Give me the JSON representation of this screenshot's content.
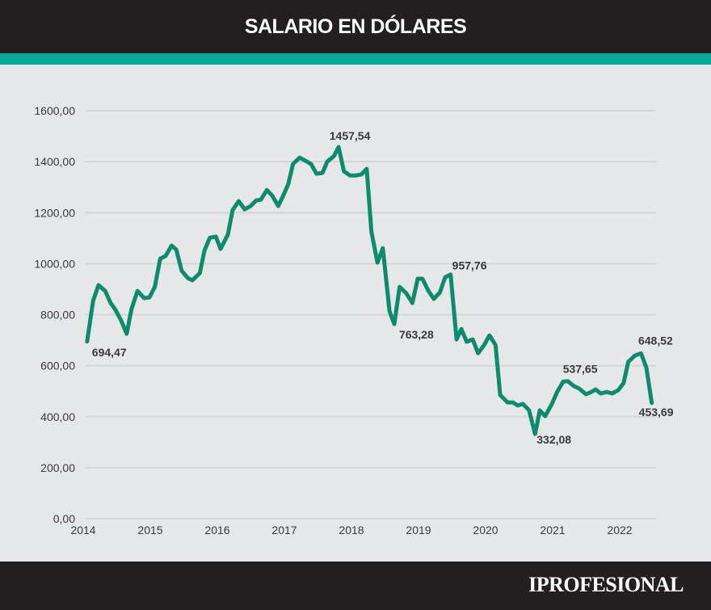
{
  "header": {
    "title": "SALARIO EN DÓLARES"
  },
  "footer": {
    "brand": "IPROFESIONAL"
  },
  "colors": {
    "header_bg": "#231f20",
    "band": "#00a991",
    "plot_bg": "#e6e7e8",
    "grid": "#d4d5d6",
    "line": "#0e8a6c",
    "text": "#3a3a3c"
  },
  "chart_data": {
    "type": "line",
    "title": "SALARIO EN DÓLARES",
    "xlabel": "",
    "ylabel": "",
    "xlim": [
      2014,
      2022.6
    ],
    "ylim": [
      0,
      1600
    ],
    "grid": true,
    "y_ticks": [
      0,
      200,
      400,
      600,
      800,
      1000,
      1200,
      1400,
      1600
    ],
    "y_tick_labels": [
      "0,00",
      "200,00",
      "400,00",
      "600,00",
      "800,00",
      "1000,00",
      "1200,00",
      "1400,00",
      "1600,00"
    ],
    "x_ticks": [
      2014,
      2015,
      2016,
      2017,
      2018,
      2019,
      2020,
      2021,
      2022
    ],
    "x_tick_labels": [
      "2014",
      "2015",
      "2016",
      "2017",
      "2018",
      "2019",
      "2020",
      "2021",
      "2022"
    ],
    "series": [
      {
        "name": "Salario en dólares",
        "x": [
          2014.07,
          2014.16,
          2014.24,
          2014.34,
          2014.42,
          2014.49,
          2014.58,
          2014.66,
          2014.73,
          2014.82,
          2014.92,
          2015.0,
          2015.08,
          2015.16,
          2015.24,
          2015.33,
          2015.4,
          2015.48,
          2015.57,
          2015.64,
          2015.75,
          2015.82,
          2015.9,
          2015.99,
          2016.06,
          2016.17,
          2016.24,
          2016.33,
          2016.42,
          2016.51,
          2016.59,
          2016.66,
          2016.75,
          2016.83,
          2016.92,
          2016.99,
          2017.07,
          2017.14,
          2017.24,
          2017.33,
          2017.41,
          2017.49,
          2017.58,
          2017.65,
          2017.75,
          2017.82,
          2017.9,
          2017.99,
          2018.07,
          2018.16,
          2018.24,
          2018.31,
          2018.4,
          2018.48,
          2018.58,
          2018.65,
          2018.73,
          2018.83,
          2018.92,
          2019.0,
          2019.07,
          2019.16,
          2019.24,
          2019.33,
          2019.41,
          2019.49,
          2019.58,
          2019.65,
          2019.73,
          2019.82,
          2019.9,
          2019.99,
          2020.07,
          2020.16,
          2020.23,
          2020.34,
          2020.42,
          2020.49,
          2020.57,
          2020.66,
          2020.75,
          2020.82,
          2020.9,
          2021.0,
          2021.08,
          2021.17,
          2021.24,
          2021.33,
          2021.41,
          2021.51,
          2021.59,
          2021.65,
          2021.73,
          2021.82,
          2021.9,
          2021.99,
          2022.07,
          2022.14,
          2022.24,
          2022.33,
          2022.41,
          2022.49
        ],
        "values": [
          694.47,
          855,
          916,
          893,
          846,
          820,
          776,
          725,
          820,
          893,
          865,
          868,
          909,
          1020,
          1030,
          1071,
          1055,
          973,
          944,
          935,
          963,
          1052,
          1102,
          1106,
          1058,
          1115,
          1210,
          1245,
          1213,
          1226,
          1248,
          1251,
          1289,
          1267,
          1226,
          1264,
          1312,
          1391,
          1416,
          1403,
          1391,
          1353,
          1356,
          1400,
          1422,
          1457.54,
          1362,
          1346,
          1346,
          1350,
          1372,
          1125,
          1004,
          1061,
          814,
          763.28,
          909,
          884,
          846,
          941,
          941,
          893,
          862,
          887,
          947,
          957.76,
          703,
          744,
          694,
          703,
          649,
          681,
          719,
          681,
          485,
          456,
          456,
          444,
          450,
          425,
          332.08,
          425,
          402,
          450,
          497,
          537.65,
          539,
          520,
          510,
          488,
          497,
          507,
          491,
          497,
          491,
          504,
          532,
          615,
          640,
          648.52,
          592,
          453.69
        ]
      }
    ],
    "annotations": [
      {
        "x": 2014.07,
        "value": 694.47,
        "label": "694,47",
        "position": "below-right"
      },
      {
        "x": 2017.82,
        "value": 1457.54,
        "label": "1457,54",
        "position": "above"
      },
      {
        "x": 2018.65,
        "value": 763.28,
        "label": "763,28",
        "position": "below-right"
      },
      {
        "x": 2019.49,
        "value": 957.76,
        "label": "957,76",
        "position": "above-right"
      },
      {
        "x": 2020.75,
        "value": 332.08,
        "label": "332,08",
        "position": "right"
      },
      {
        "x": 2021.17,
        "value": 537.65,
        "label": "537,65",
        "position": "above"
      },
      {
        "x": 2022.33,
        "value": 648.52,
        "label": "648,52",
        "position": "above"
      },
      {
        "x": 2022.49,
        "value": 453.69,
        "label": "453,69",
        "position": "below"
      }
    ]
  }
}
